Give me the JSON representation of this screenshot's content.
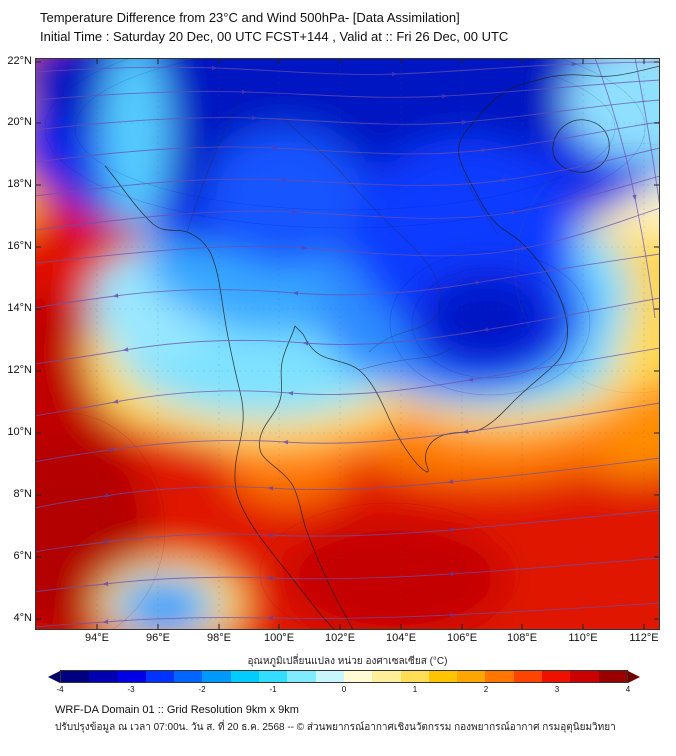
{
  "header": {
    "title_line1": "Temperature Difference from 23°C and Wind 500hPa- [Data Assimilation]",
    "title_line2": "Initial Time : Saturday 20 Dec, 00 UTC FCST+144 , Valid at ::  Fri 26 Dec, 00 UTC"
  },
  "map": {
    "lat_labels": [
      "22°N",
      "20°N",
      "18°N",
      "16°N",
      "14°N",
      "12°N",
      "10°N",
      "8°N",
      "6°N",
      "4°N"
    ],
    "lon_labels": [
      "94°E",
      "96°E",
      "98°E",
      "100°E",
      "102°E",
      "104°E",
      "106°E",
      "108°E",
      "110°E",
      "112°E"
    ]
  },
  "colorbar": {
    "label": "อุณหภูมิเปลี่ยนแปลง หน่วย องศาเซลเซียส (°C)",
    "ticks": [
      "-4",
      "-3",
      "-2",
      "-1",
      "0",
      "1",
      "2",
      "3",
      "4"
    ],
    "colors": [
      "#000080",
      "#0000b3",
      "#0000e6",
      "#0033ff",
      "#0066ff",
      "#0099ff",
      "#00ccff",
      "#33ddff",
      "#80eaff",
      "#c8f5ff",
      "#fffbd5",
      "#ffee99",
      "#ffdd55",
      "#ffc400",
      "#ffa500",
      "#ff7700",
      "#ff4400",
      "#ee1100",
      "#cc0000",
      "#990000"
    ]
  },
  "footer": {
    "line1": "WRF-DA Domain 01 :: Grid Resolution 9km x 9km",
    "line2": "ปรับปรุงข้อมูล ณ เวลา 07:00น. วัน ส. ที่ 20 ธ.ค. 2568 -- © ส่วนพยากรณ์อากาศเชิงนวัตกรรม กองพยากรณ์อากาศ กรมอุตุนิยมวิทยา"
  },
  "chart_data": {
    "type": "heatmap",
    "units": "°C",
    "value_range": [
      -4,
      4
    ],
    "x_range": [
      "94°E",
      "112°E"
    ],
    "y_range": [
      "4°N",
      "22°N"
    ],
    "field": "temperature difference at 500hPa with wind streamlines",
    "pattern_summary": "strong cold anomaly (-3 to -4) over northern Indochina and a cold cell near 106E/13N; warm anomaly (+2 to +4) over the south, west edge and lower Gulf region; small cold pocket near 97E/5N"
  }
}
